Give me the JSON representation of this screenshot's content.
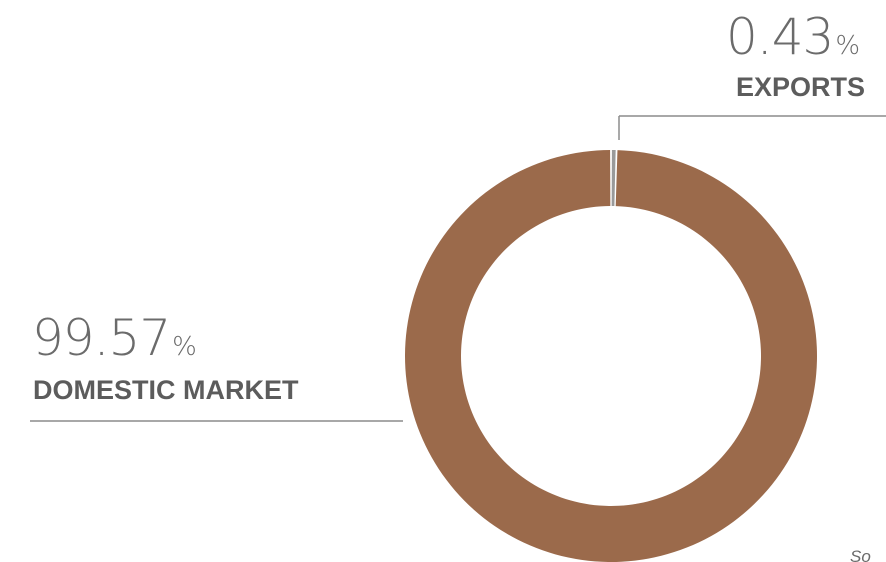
{
  "chart_data": {
    "type": "pie",
    "variant": "donut",
    "categories": [
      "EXPORTS",
      "DOMESTIC MARKET"
    ],
    "values": [
      0.43,
      99.57
    ],
    "unit": "%",
    "colors": {
      "EXPORTS": "#9a9a9a",
      "DOMESTIC MARKET": "#9b6a4b"
    },
    "labels": [
      {
        "value": "0.43",
        "unit": "%",
        "name": "EXPORTS"
      },
      {
        "value": "99.57",
        "unit": "%",
        "name": "DOMESTIC MARKET"
      }
    ]
  },
  "footer": {
    "source_text": "So"
  }
}
